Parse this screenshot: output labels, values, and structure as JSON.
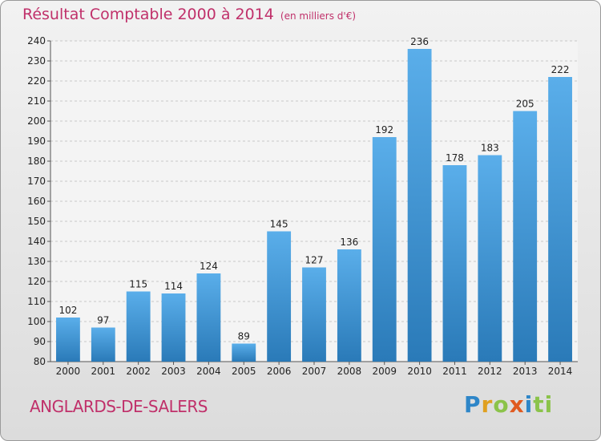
{
  "header": {
    "title": "Résultat Comptable 2000 à 2014",
    "subtitle": "(en milliers d'€)"
  },
  "footer": {
    "commune": "ANGLARDS-DE-SALERS",
    "logo_letters": [
      "P",
      "r",
      "o",
      "x",
      "i",
      "ti"
    ]
  },
  "colors": {
    "bar_top": "#5aaeea",
    "bar_bottom": "#2a7ab8",
    "title": "#c0306a",
    "plot_bg": "#f4f4f4"
  },
  "chart_data": {
    "type": "bar",
    "title": "Résultat Comptable 2000 à 2014",
    "subtitle": "(en milliers d'€)",
    "xlabel": "",
    "ylabel": "",
    "ylim": [
      80,
      240
    ],
    "yticks": [
      80,
      90,
      100,
      110,
      120,
      130,
      140,
      150,
      160,
      170,
      180,
      190,
      200,
      210,
      220,
      230,
      240
    ],
    "grid": true,
    "categories": [
      "2000",
      "2001",
      "2002",
      "2003",
      "2004",
      "2005",
      "2006",
      "2007",
      "2008",
      "2009",
      "2010",
      "2011",
      "2012",
      "2013",
      "2014"
    ],
    "values": [
      102,
      97,
      115,
      114,
      124,
      89,
      145,
      127,
      136,
      192,
      236,
      178,
      183,
      205,
      222
    ],
    "data_labels": [
      "102",
      "97",
      "115",
      "114",
      "124",
      "89",
      "145",
      "127",
      "136",
      "192",
      "236",
      "178",
      "183",
      "205",
      "222"
    ]
  }
}
